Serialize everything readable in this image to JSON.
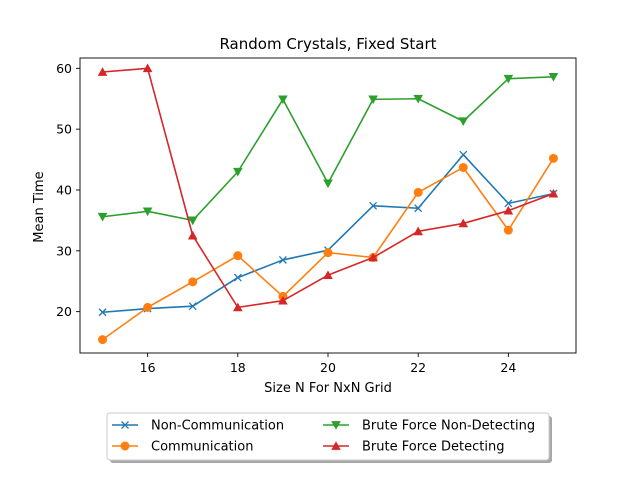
{
  "chart_data": {
    "type": "line",
    "title": "Random Crystals, Fixed Start",
    "xlabel": "Size N For NxN Grid",
    "ylabel": "Mean Time",
    "x": [
      15,
      16,
      17,
      18,
      19,
      20,
      21,
      22,
      23,
      24,
      25
    ],
    "xlim": [
      14.5,
      25.5
    ],
    "ylim": [
      13.2,
      61.7
    ],
    "xticks": [
      16,
      18,
      20,
      22,
      24
    ],
    "yticks": [
      20,
      30,
      40,
      50,
      60
    ],
    "grid": false,
    "legend_placement": "below",
    "series": [
      {
        "name": "Non-Communication",
        "color": "#1f77b4",
        "marker": "x",
        "values": [
          19.9,
          20.5,
          20.9,
          25.6,
          28.5,
          30.1,
          37.4,
          37.0,
          45.8,
          37.8,
          39.4
        ]
      },
      {
        "name": "Communication",
        "color": "#ff7f0e",
        "marker": "circle",
        "values": [
          15.4,
          20.7,
          24.9,
          29.2,
          22.5,
          29.7,
          28.9,
          39.6,
          43.7,
          33.4,
          45.2
        ]
      },
      {
        "name": "Brute Force Non-Detecting",
        "color": "#2ca02c",
        "marker": "triangle-down",
        "values": [
          35.6,
          36.5,
          35.0,
          43.0,
          54.9,
          41.1,
          54.9,
          55.0,
          51.3,
          58.3,
          58.6
        ]
      },
      {
        "name": "Brute Force Detecting",
        "color": "#d62728",
        "marker": "triangle-up",
        "values": [
          59.4,
          60.0,
          32.5,
          20.7,
          21.8,
          26.0,
          28.9,
          33.2,
          34.5,
          36.6,
          39.4
        ]
      }
    ]
  }
}
